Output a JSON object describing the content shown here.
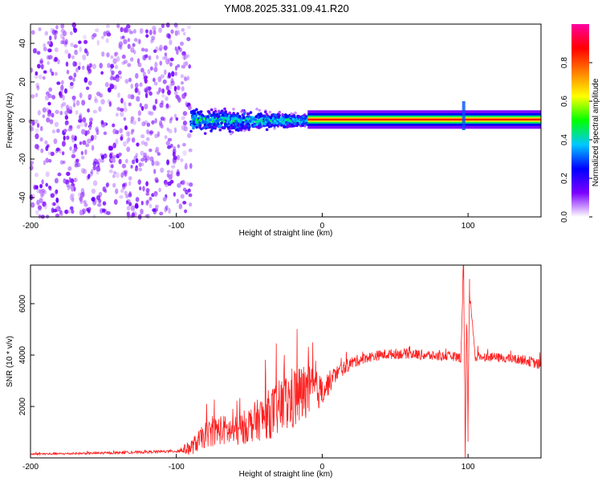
{
  "title": "YM08.2025.331.09.41.R20",
  "chart_data": [
    {
      "type": "heatmap",
      "xlabel": "Height of straight line (km)",
      "ylabel": "Frequency (Hz)",
      "xlim": [
        -200,
        150
      ],
      "ylim": [
        -50,
        50
      ],
      "xticks": [
        -200,
        -100,
        0,
        100
      ],
      "yticks": [
        -40,
        -20,
        0,
        20,
        40
      ],
      "colorbar": {
        "label": "Normalized spectral amplitude",
        "range": [
          0,
          1
        ],
        "ticks": [
          "0.0",
          "0.2",
          "0.4",
          "0.6",
          "0.8"
        ],
        "tick_values": [
          0.0,
          0.2,
          0.4,
          0.6,
          0.8
        ],
        "colormap_stops": [
          "#ffffff",
          "#7b00ff",
          "#0000ff",
          "#00c8ff",
          "#00ff00",
          "#ffff00",
          "#ff8000",
          "#ff0000",
          "#ff00a0"
        ]
      },
      "description_points": [
        {
          "x_range": [
            -200,
            -90
          ],
          "freq_range": [
            -50,
            50
          ],
          "amplitude": 0.05,
          "pattern": "scattered noise"
        },
        {
          "x_range": [
            -90,
            -10
          ],
          "freq_center": 0,
          "freq_spread": 6,
          "amplitude": 0.4,
          "pattern": "broadening signal"
        },
        {
          "x_range": [
            -10,
            150
          ],
          "freq_center": 0.5,
          "freq_spread": 1.5,
          "amplitude": 0.85,
          "pattern": "narrow carrier line"
        },
        {
          "x": 97,
          "freq_range": [
            -5,
            10
          ],
          "amplitude": 0.3,
          "pattern": "spike"
        }
      ]
    },
    {
      "type": "line",
      "xlabel": "Height of straight line (km)",
      "ylabel": "SNR (10 * v/v)",
      "xlim": [
        -200,
        150
      ],
      "ylim": [
        0,
        7500
      ],
      "xticks": [
        -200,
        -100,
        0,
        100
      ],
      "yticks": [
        2000,
        4000,
        6000
      ],
      "series": [
        {
          "name": "SNR",
          "color": "#ff2020",
          "x": [
            -200,
            -180,
            -160,
            -140,
            -120,
            -100,
            -90,
            -80,
            -70,
            -60,
            -50,
            -40,
            -30,
            -20,
            -10,
            0,
            10,
            20,
            30,
            40,
            50,
            60,
            70,
            80,
            90,
            95,
            97,
            98,
            99,
            100,
            101,
            105,
            110,
            120,
            130,
            140,
            150
          ],
          "values": [
            150,
            160,
            180,
            200,
            230,
            260,
            400,
            900,
            1100,
            1000,
            1300,
            1600,
            1900,
            2300,
            2600,
            2600,
            3300,
            3700,
            3900,
            4000,
            4050,
            4050,
            4000,
            3950,
            3950,
            3900,
            7500,
            100,
            5200,
            1200,
            6500,
            3900,
            3950,
            3900,
            3850,
            3800,
            3600
          ],
          "noise_amplitude": [
            40,
            40,
            40,
            50,
            50,
            60,
            300,
            500,
            600,
            600,
            700,
            900,
            1100,
            1300,
            1100,
            600,
            300,
            250,
            200,
            200,
            200,
            200,
            200,
            180,
            180,
            200,
            0,
            0,
            0,
            0,
            0,
            200,
            180,
            180,
            180,
            200,
            220
          ]
        }
      ]
    }
  ]
}
